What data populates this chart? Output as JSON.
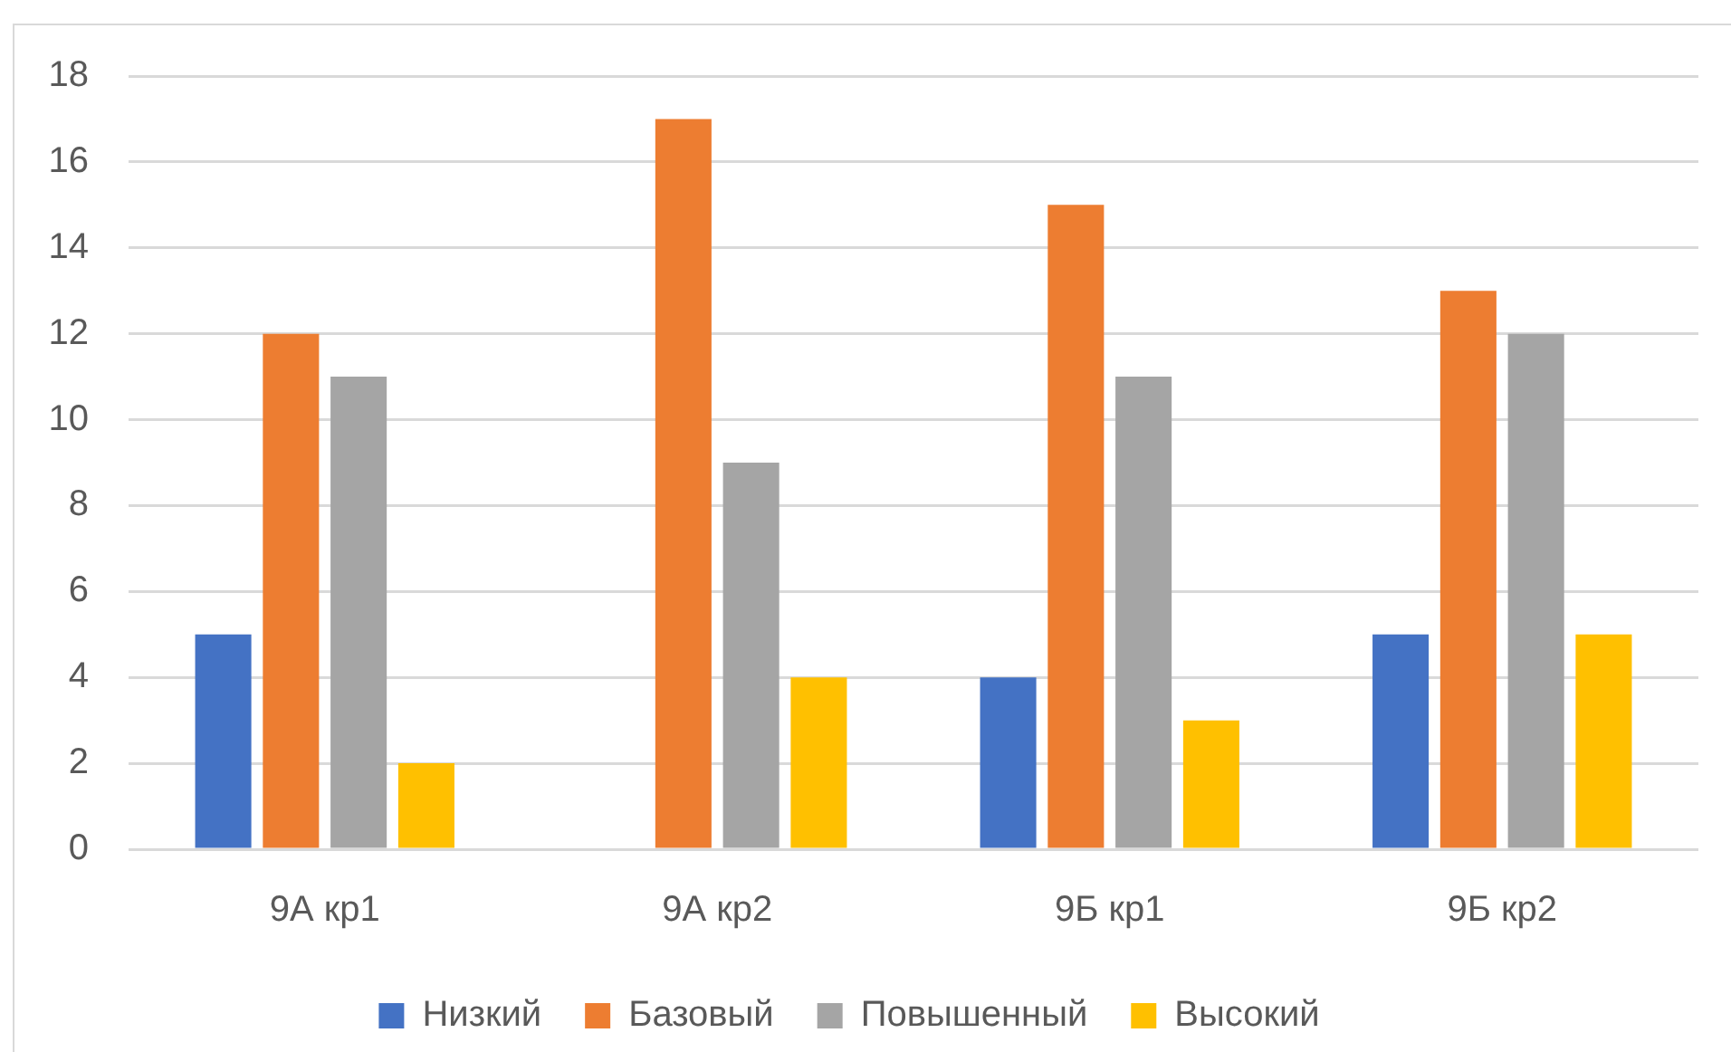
{
  "chart_data": {
    "type": "bar",
    "categories": [
      "9А кр1",
      "9А кр2",
      "9Б кр1",
      "9Б кр2"
    ],
    "series": [
      {
        "name": "Низкий",
        "color": "#4472c4",
        "values": [
          5,
          0,
          4,
          5
        ]
      },
      {
        "name": "Базовый",
        "color": "#ed7d31",
        "values": [
          12,
          17,
          15,
          13
        ]
      },
      {
        "name": "Повышенный",
        "color": "#a5a5a5",
        "values": [
          11,
          9,
          11,
          12
        ]
      },
      {
        "name": "Высокий",
        "color": "#ffc000",
        "values": [
          2,
          4,
          3,
          5
        ]
      }
    ],
    "ylim": [
      0,
      18
    ],
    "yticks": [
      0,
      2,
      4,
      6,
      8,
      10,
      12,
      14,
      16,
      18
    ],
    "grid": "y",
    "legend": "bottom"
  }
}
